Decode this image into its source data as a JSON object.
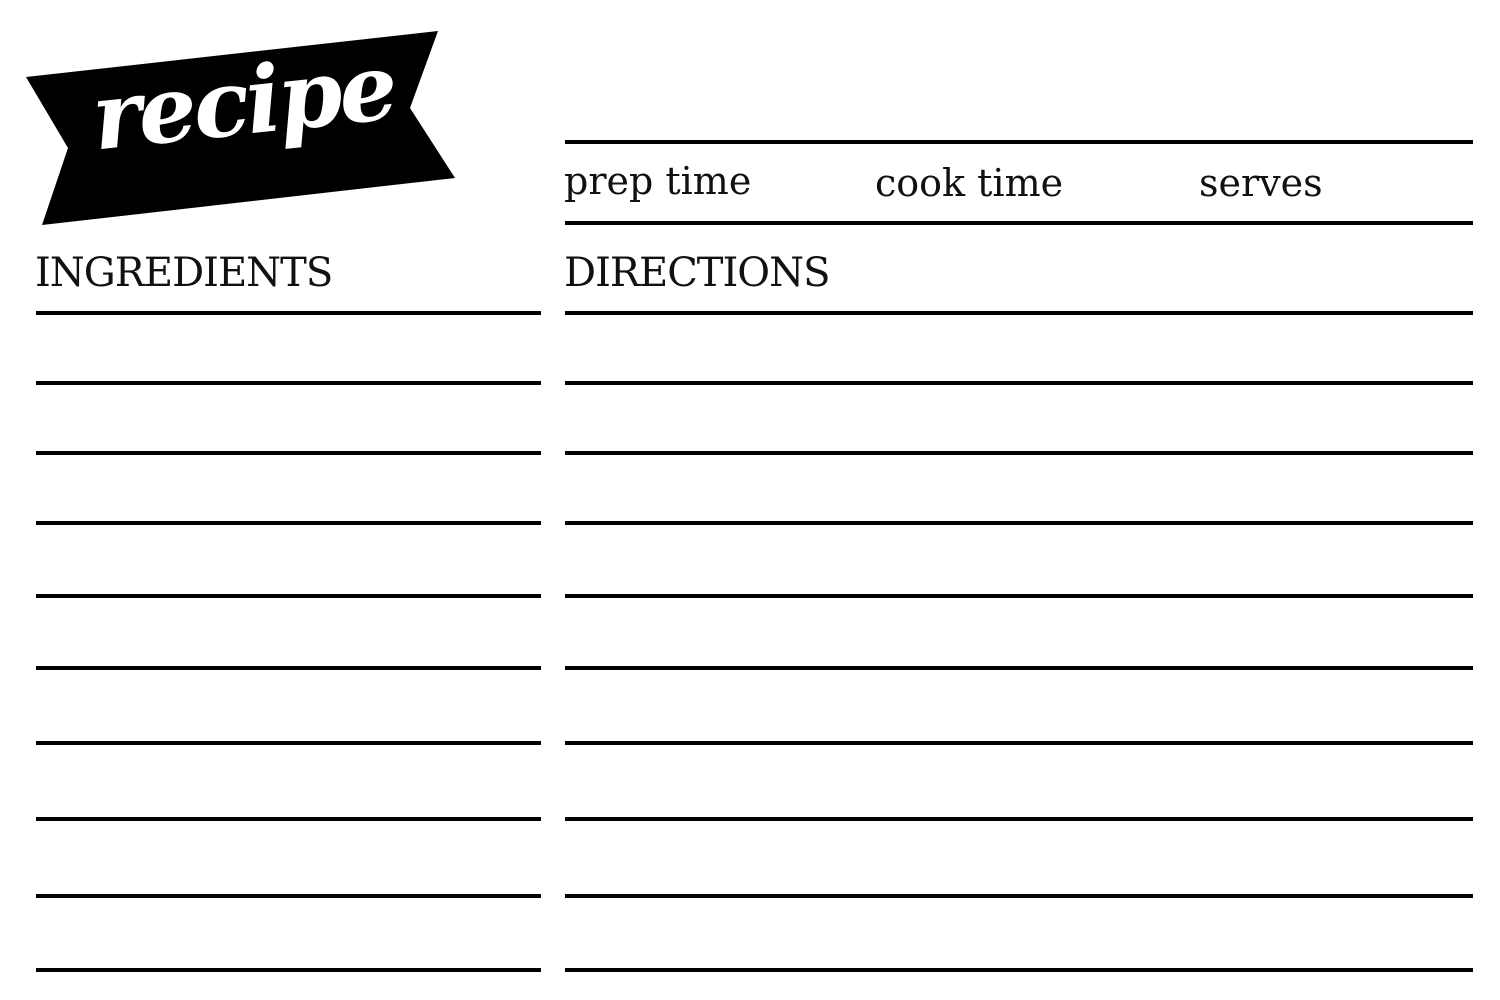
{
  "banner": {
    "title": "recipe"
  },
  "meta": {
    "prep_label": "prep time",
    "cook_label": "cook time",
    "serves_label": "serves"
  },
  "sections": {
    "ingredients": "INGREDIENTS",
    "directions": "DIRECTIONS"
  },
  "writing_lines_per_column": 10
}
